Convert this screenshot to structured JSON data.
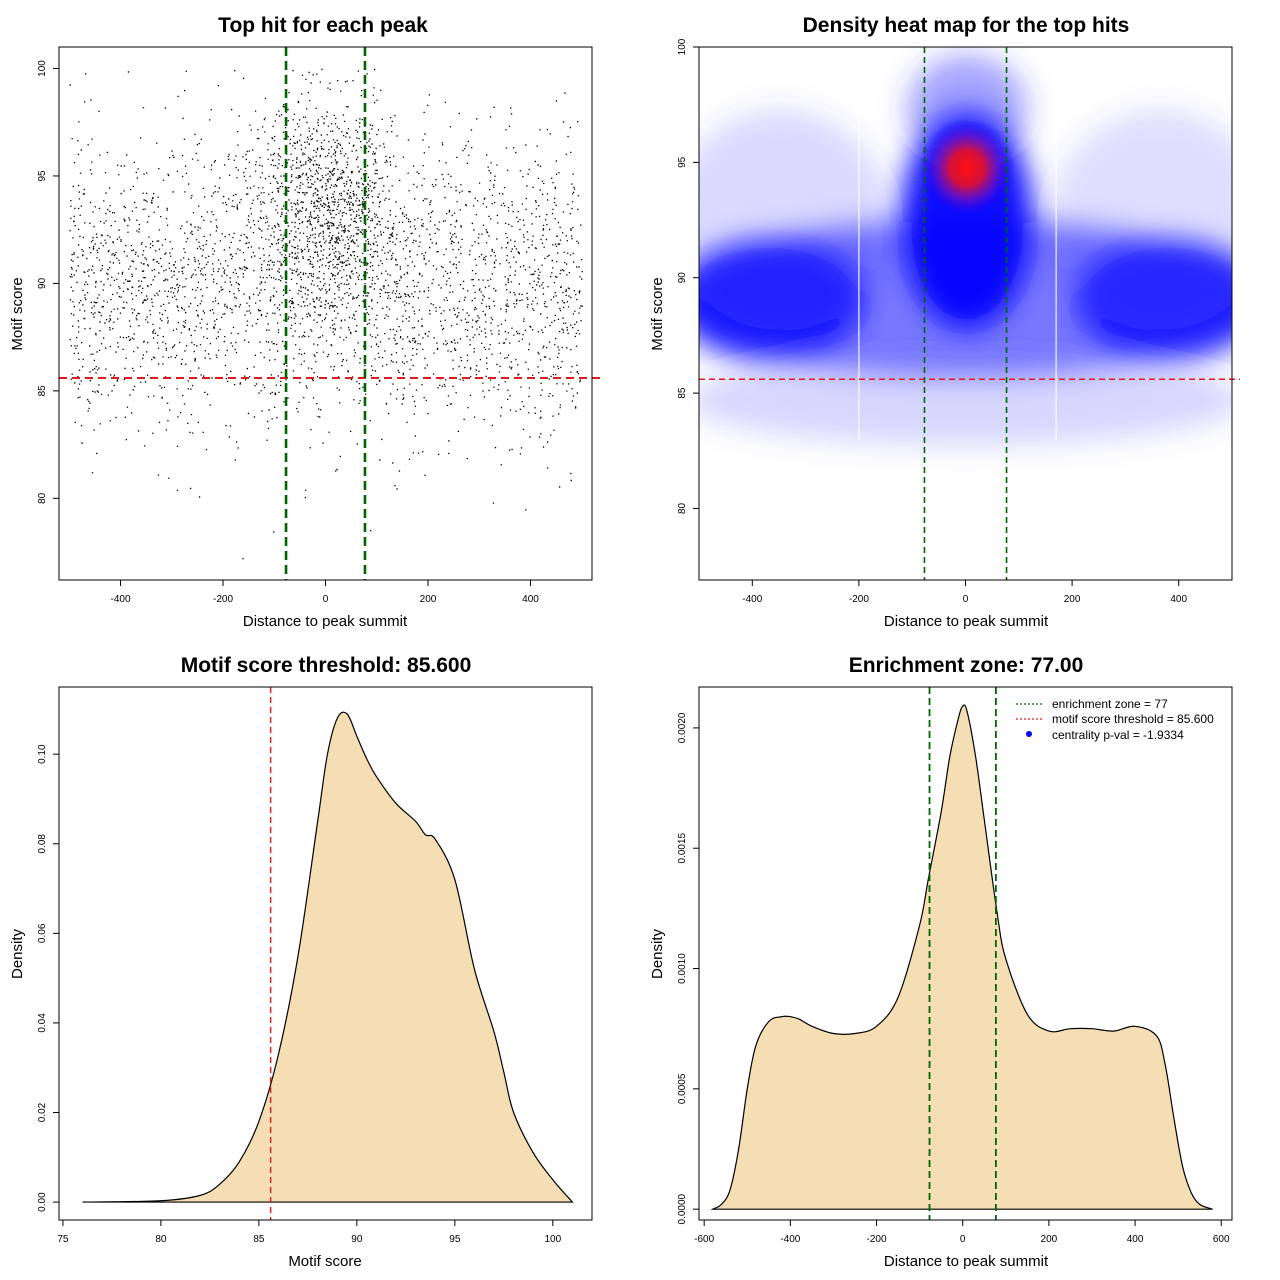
{
  "colors": {
    "threshold": "#e31a1c",
    "zone": "#006400",
    "fill": "#f5deb3",
    "points": "#000000",
    "heat_low": "#0000ff",
    "heat_high": "#ff0000",
    "centrality_dot": "#0000ff"
  },
  "chart_data": [
    {
      "id": "scatter",
      "type": "scatter",
      "title": "Top hit for each peak",
      "xlabel": "Distance to peak summit",
      "ylabel": "Motif score",
      "xlim": [
        -520,
        520
      ],
      "ylim": [
        76.2,
        101.0
      ],
      "xticks": [
        -400,
        -200,
        0,
        200,
        400
      ],
      "yticks": [
        80,
        85,
        90,
        95,
        100
      ],
      "xtick_labels": [
        "-400",
        "-200",
        "0",
        "200",
        "400"
      ],
      "ytick_labels": [
        "80",
        "85",
        "90",
        "95",
        "100"
      ],
      "threshold": 85.6,
      "zone": 77,
      "point_x_range": [
        -500,
        500
      ],
      "point_score_mean": 90,
      "point_score_sd": 3.4,
      "central_score_mean": 93.5,
      "central_score_sd": 2.8,
      "central_x_sd": 70,
      "n_points_sketch": 9000
    },
    {
      "id": "heatmap",
      "type": "heatmap",
      "title": "Density heat map for the top hits",
      "xlabel": "Distance to peak summit",
      "ylabel": "Motif score",
      "xlim": [
        -500,
        500
      ],
      "ylim": [
        76.9,
        100.0
      ],
      "xticks": [
        -400,
        -200,
        0,
        200,
        400
      ],
      "yticks": [
        80,
        85,
        90,
        95,
        100
      ],
      "xtick_labels": [
        "-400",
        "-200",
        "0",
        "200",
        "400"
      ],
      "ytick_labels": [
        "80",
        "85",
        "90",
        "95",
        "100"
      ],
      "threshold": 85.6,
      "zone": 77,
      "hotspot": {
        "x": 5,
        "y": 94.8
      }
    },
    {
      "id": "score_density",
      "type": "area",
      "title": "Motif score threshold: 85.600",
      "xlabel": "Motif score",
      "ylabel": "Density",
      "xlim": [
        74.8,
        102.0
      ],
      "ylim": [
        -0.004,
        0.115
      ],
      "xticks": [
        75,
        80,
        85,
        90,
        95,
        100
      ],
      "yticks": [
        0.0,
        0.02,
        0.04,
        0.06,
        0.08,
        0.1
      ],
      "xtick_labels": [
        "75",
        "80",
        "85",
        "90",
        "95",
        "100"
      ],
      "ytick_labels": [
        "0.00",
        "0.02",
        "0.04",
        "0.06",
        "0.08",
        "0.10"
      ],
      "threshold": 85.6,
      "x": [
        76,
        80,
        82,
        83,
        84,
        85,
        86,
        87,
        88,
        88.5,
        89,
        89.5,
        90,
        90.5,
        91,
        92,
        93,
        93.5,
        94,
        95,
        96,
        97,
        97.5,
        98,
        99,
        100,
        101
      ],
      "y": [
        0.0,
        0.0003,
        0.0015,
        0.004,
        0.009,
        0.018,
        0.033,
        0.055,
        0.085,
        0.1,
        0.108,
        0.109,
        0.104,
        0.099,
        0.095,
        0.089,
        0.085,
        0.082,
        0.081,
        0.072,
        0.052,
        0.038,
        0.029,
        0.02,
        0.011,
        0.005,
        0.0
      ]
    },
    {
      "id": "distance_density",
      "type": "area",
      "title": "Enrichment zone: 77.00",
      "xlabel": "Distance to peak summit",
      "ylabel": "Density",
      "xlim": [
        -612,
        625
      ],
      "ylim": [
        -4.5e-05,
        0.00217
      ],
      "xticks": [
        -600,
        -400,
        -200,
        0,
        200,
        400,
        600
      ],
      "yticks": [
        0.0,
        0.0005,
        0.001,
        0.0015,
        0.002
      ],
      "xtick_labels": [
        "-600",
        "-400",
        "-200",
        "0",
        "200",
        "400",
        "600"
      ],
      "ytick_labels": [
        "0.0000",
        "0.0005",
        "0.0010",
        "0.0015",
        "0.0020"
      ],
      "zone": 77,
      "x": [
        -580,
        -560,
        -540,
        -520,
        -500,
        -480,
        -450,
        -420,
        -400,
        -380,
        -350,
        -300,
        -250,
        -200,
        -150,
        -100,
        -80,
        -50,
        -30,
        -10,
        0,
        10,
        30,
        50,
        80,
        100,
        150,
        200,
        250,
        300,
        350,
        400,
        450,
        470,
        490,
        510,
        530,
        550,
        580
      ],
      "y": [
        0.0,
        2e-05,
        8e-05,
        0.00025,
        0.0005,
        0.00068,
        0.00078,
        0.0008,
        0.0008,
        0.00079,
        0.00076,
        0.00073,
        0.00073,
        0.00076,
        0.00088,
        0.00118,
        0.00137,
        0.00165,
        0.00188,
        0.00204,
        0.00209,
        0.00207,
        0.00188,
        0.00162,
        0.00123,
        0.00104,
        0.00081,
        0.00074,
        0.00075,
        0.00075,
        0.00074,
        0.00076,
        0.00072,
        0.0006,
        0.00038,
        0.00018,
        7e-05,
        2e-05,
        0.0
      ]
    }
  ],
  "legend": {
    "items": [
      {
        "label": "enrichment zone = 77",
        "kind": "dotted-line",
        "color": "#006400"
      },
      {
        "label": "motif score threshold = 85.600",
        "kind": "dotted-line",
        "color": "#e31a1c"
      },
      {
        "label": "centrality p-val = -1.9334",
        "kind": "dot",
        "color": "#0000ff"
      }
    ]
  }
}
